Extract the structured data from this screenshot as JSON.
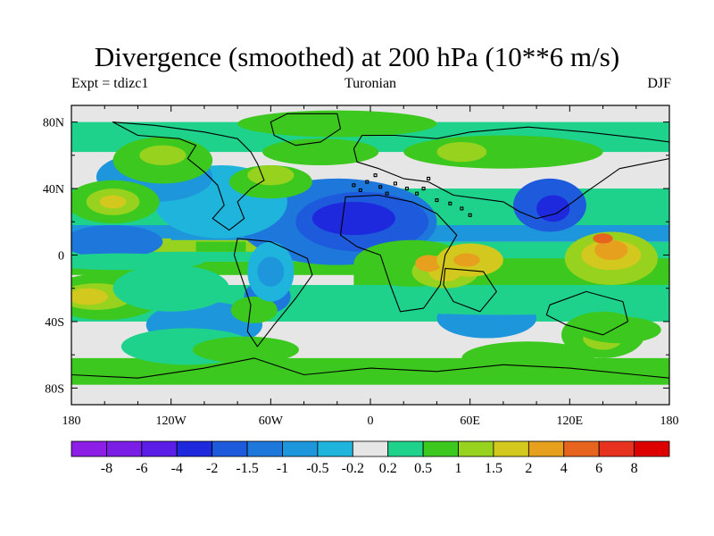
{
  "chart_data": {
    "type": "heatmap",
    "title": "Divergence (smoothed) at 200 hPa (10**6 m/s)",
    "subtitle_left": "Expt = tdizc1",
    "subtitle_center": "Turonian",
    "subtitle_right": "DJF",
    "x_ticks": [
      "180",
      "120W",
      "60W",
      "0",
      "60E",
      "120E",
      "180"
    ],
    "y_ticks": [
      "80N",
      "40N",
      "0",
      "40S",
      "80S"
    ],
    "xlim": [
      -180,
      180
    ],
    "ylim": [
      -90,
      90
    ],
    "x_tick_values": [
      -180,
      -120,
      -60,
      0,
      60,
      120,
      180
    ],
    "y_tick_values": [
      80,
      40,
      0,
      -40,
      -80
    ],
    "colorbar": {
      "labels": [
        "-8",
        "-6",
        "-4",
        "-2",
        "-1.5",
        "-1",
        "-0.5",
        "-0.2",
        "0.2",
        "0.5",
        "1",
        "1.5",
        "2",
        "4",
        "6",
        "8"
      ],
      "colors": [
        "#8c1ee6",
        "#7a1ee6",
        "#5a1ee6",
        "#1e28dc",
        "#1e5adc",
        "#1e78dc",
        "#1e96dc",
        "#1eb4dc",
        "#e6e6e6",
        "#1ed28c",
        "#3cc81e",
        "#96d21e",
        "#d2c81e",
        "#e6a01e",
        "#e6641e",
        "#e6321e",
        "#dc0000"
      ]
    }
  }
}
